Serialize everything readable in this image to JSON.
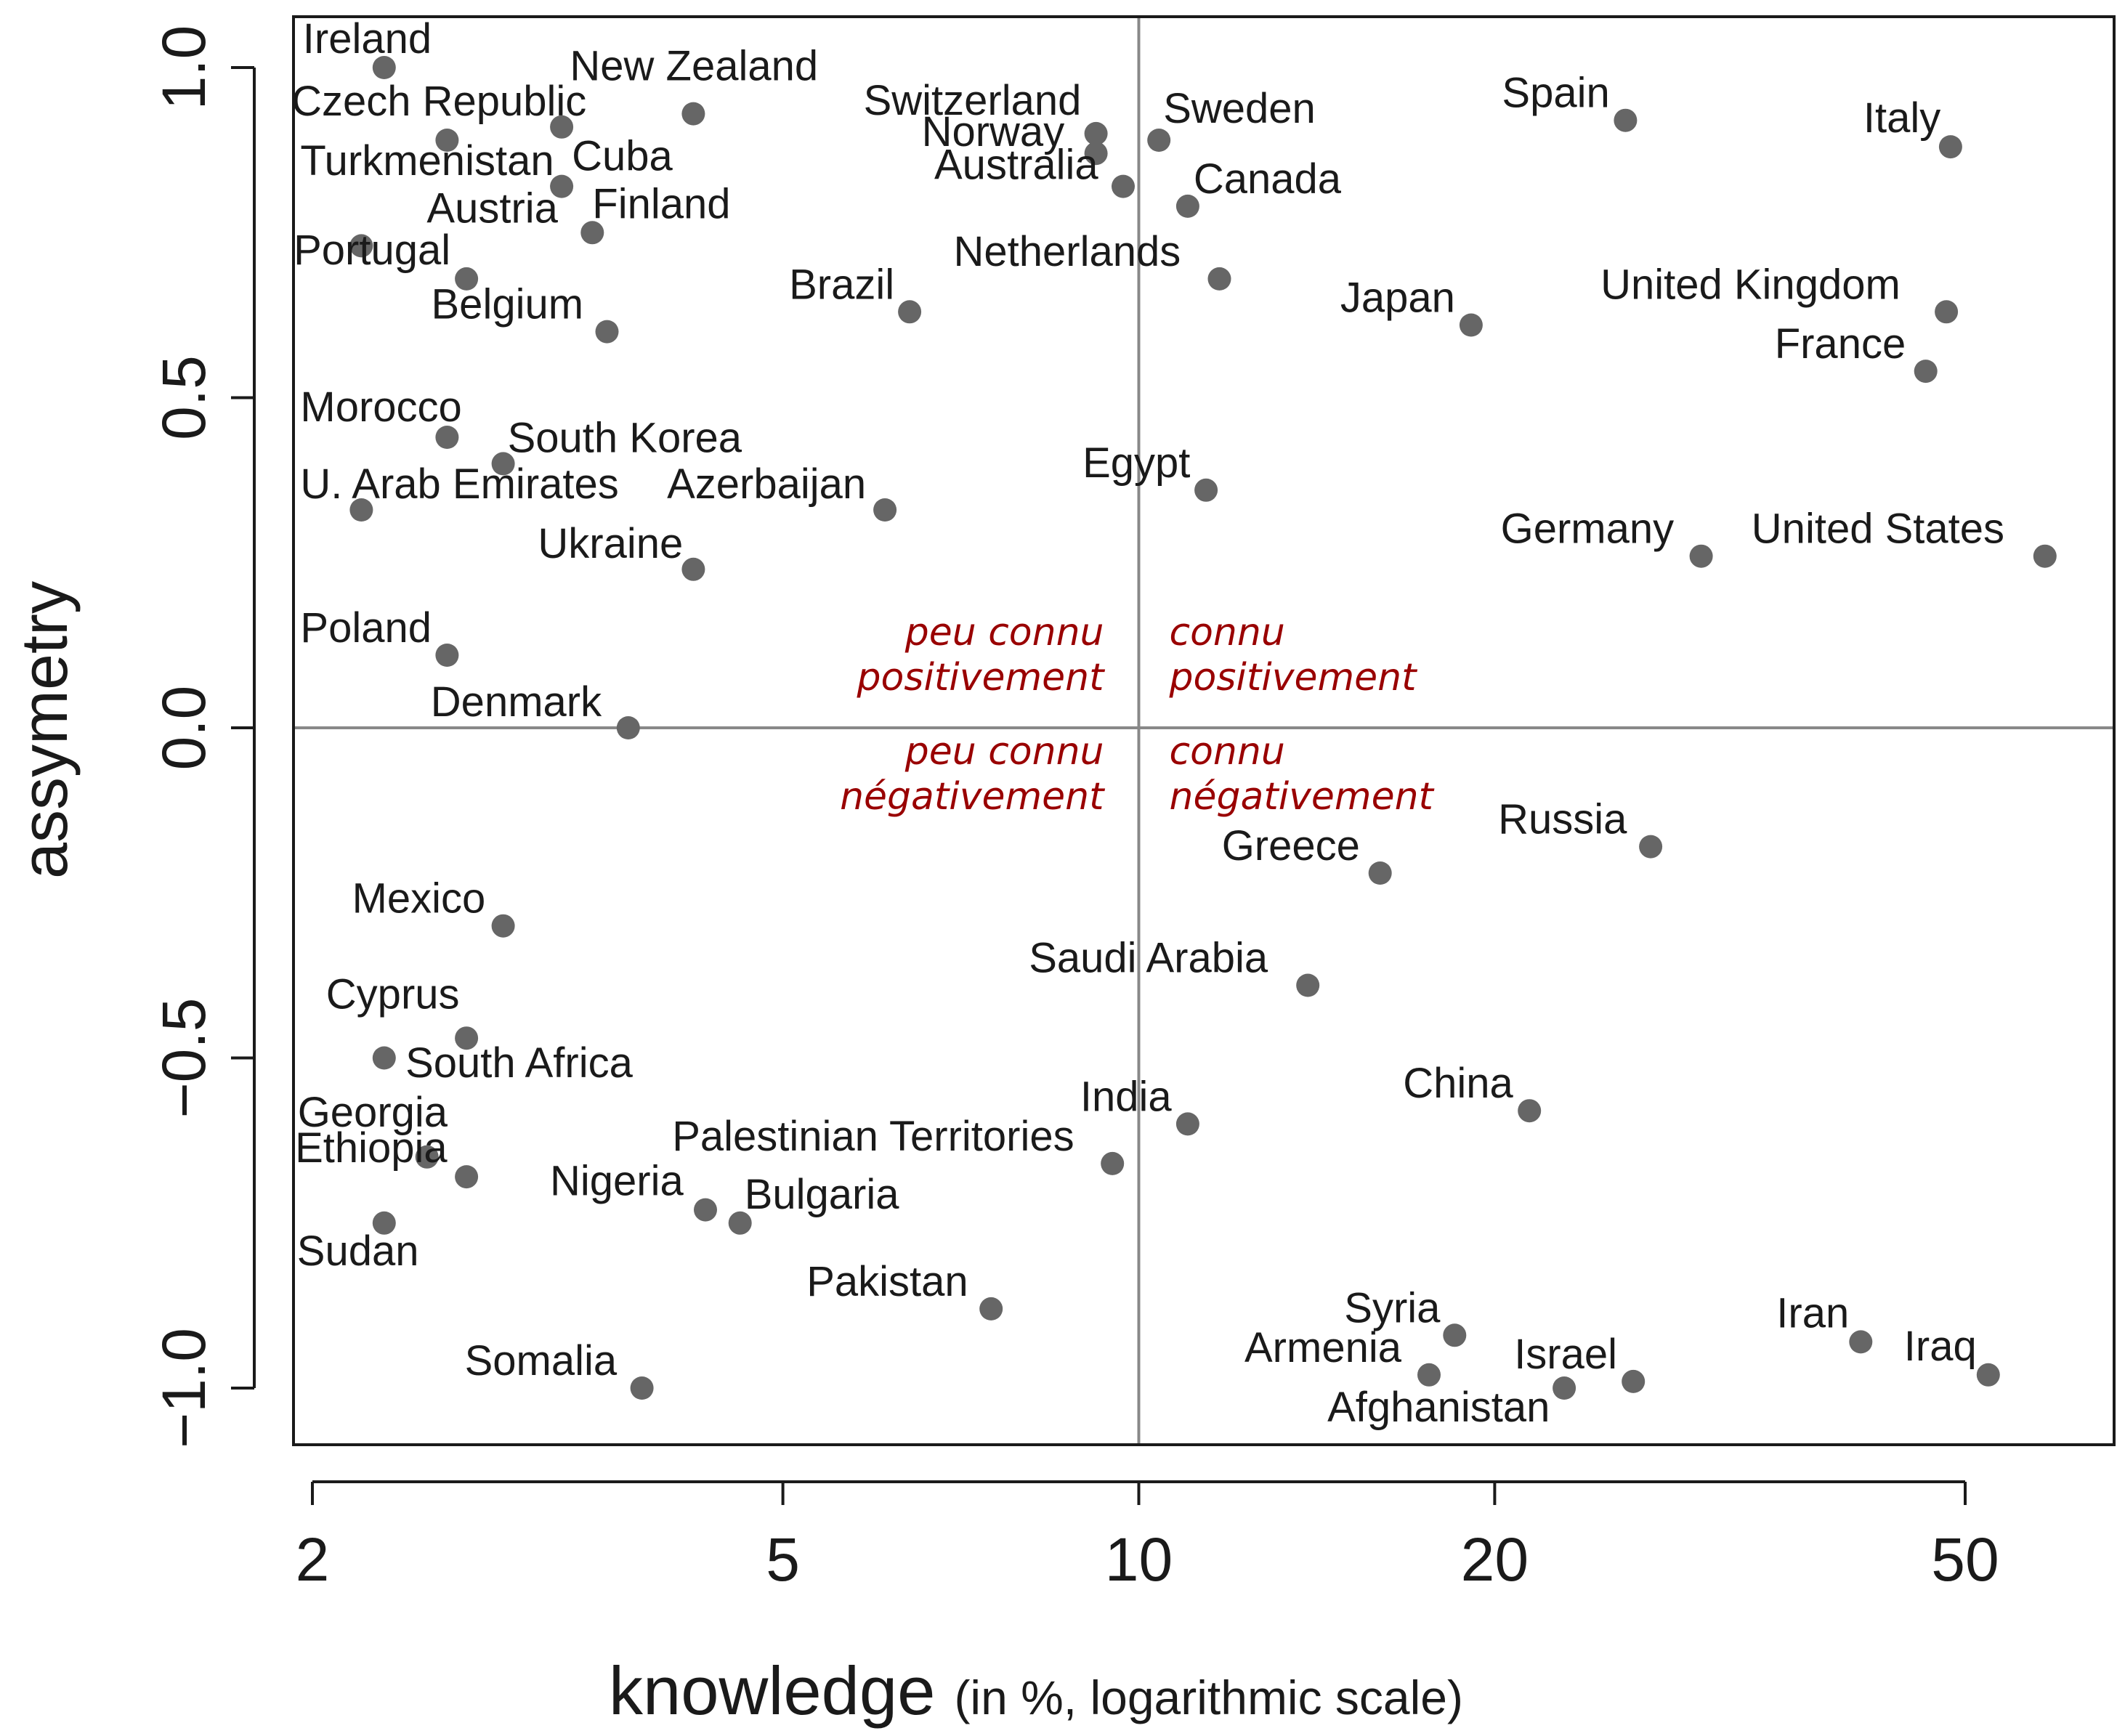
{
  "chart_data": {
    "type": "scatter",
    "xlabel": "knowledge",
    "xlabel_note": "(in %, logarithmic scale)",
    "ylabel": "assymetry",
    "x_scale": "log",
    "xlim": [
      1.95,
      62
    ],
    "ylim": [
      -1.08,
      1.08
    ],
    "x_ticks": [
      2,
      5,
      10,
      20,
      50
    ],
    "x_tick_labels": [
      "2",
      "5",
      "10",
      "20",
      "50"
    ],
    "y_ticks": [
      -1.0,
      -0.5,
      0.0,
      0.5,
      1.0
    ],
    "y_tick_labels": [
      "−1.0",
      "−0.5",
      "0.0",
      "0.5",
      "1.0"
    ],
    "reference_lines": {
      "x": 10,
      "y": 0
    },
    "point_color": "#666666",
    "quadrant_label_color": "#990000",
    "quadrant_labels": [
      {
        "lines": [
          "peu connu",
          "positivement"
        ],
        "position": "top-left"
      },
      {
        "lines": [
          "connu",
          "positivement"
        ],
        "position": "top-right"
      },
      {
        "lines": [
          "peu connu",
          "négativement"
        ],
        "position": "bottom-left"
      },
      {
        "lines": [
          "connu",
          "négativement"
        ],
        "position": "bottom-right"
      }
    ],
    "points": [
      {
        "label": "Ireland",
        "x": 2.3,
        "y": 1.0
      },
      {
        "label": "New Zealand",
        "x": 4.2,
        "y": 0.93
      },
      {
        "label": "Czech Republic",
        "x": 3.25,
        "y": 0.91
      },
      {
        "label": "Turkmenistan",
        "x": 2.6,
        "y": 0.89
      },
      {
        "label": "Cuba",
        "x": 3.25,
        "y": 0.82
      },
      {
        "label": "Finland",
        "x": 3.45,
        "y": 0.75
      },
      {
        "label": "Austria",
        "x": 2.2,
        "y": 0.73
      },
      {
        "label": "Portugal",
        "x": 2.7,
        "y": 0.68
      },
      {
        "label": "Belgium",
        "x": 3.55,
        "y": 0.6
      },
      {
        "label": "Morocco",
        "x": 2.6,
        "y": 0.44
      },
      {
        "label": "South Korea",
        "x": 2.9,
        "y": 0.4
      },
      {
        "label": "U. Arab Emirates",
        "x": 2.2,
        "y": 0.33
      },
      {
        "label": "Azerbaijan",
        "x": 6.1,
        "y": 0.33
      },
      {
        "label": "Ukraine",
        "x": 4.2,
        "y": 0.24
      },
      {
        "label": "Poland",
        "x": 2.6,
        "y": 0.11
      },
      {
        "label": "Denmark",
        "x": 3.7,
        "y": 0.0
      },
      {
        "label": "Switzerland",
        "x": 9.2,
        "y": 0.9
      },
      {
        "label": "Norway",
        "x": 9.2,
        "y": 0.87
      },
      {
        "label": "Australia",
        "x": 9.7,
        "y": 0.82
      },
      {
        "label": "Brazil",
        "x": 6.4,
        "y": 0.63
      },
      {
        "label": "Sweden",
        "x": 10.4,
        "y": 0.89
      },
      {
        "label": "Canada",
        "x": 11.0,
        "y": 0.79
      },
      {
        "label": "Netherlands",
        "x": 11.7,
        "y": 0.68
      },
      {
        "label": "Egypt",
        "x": 11.4,
        "y": 0.36
      },
      {
        "label": "Spain",
        "x": 25.8,
        "y": 0.92
      },
      {
        "label": "Italy",
        "x": 48.6,
        "y": 0.88
      },
      {
        "label": "Japan",
        "x": 19.1,
        "y": 0.61
      },
      {
        "label": "United Kingdom",
        "x": 48.2,
        "y": 0.63
      },
      {
        "label": "France",
        "x": 46.3,
        "y": 0.54
      },
      {
        "label": "Germany",
        "x": 29.9,
        "y": 0.26
      },
      {
        "label": "United States",
        "x": 58.4,
        "y": 0.26
      },
      {
        "label": "Russia",
        "x": 27.1,
        "y": -0.18
      },
      {
        "label": "Greece",
        "x": 16.0,
        "y": -0.22
      },
      {
        "label": "Saudi Arabia",
        "x": 13.9,
        "y": -0.39
      },
      {
        "label": "China",
        "x": 21.4,
        "y": -0.58
      },
      {
        "label": "India",
        "x": 11.0,
        "y": -0.6
      },
      {
        "label": "Palestinian Territories",
        "x": 9.5,
        "y": -0.66
      },
      {
        "label": "Mexico",
        "x": 2.9,
        "y": -0.3
      },
      {
        "label": "Cyprus",
        "x": 2.3,
        "y": -0.5
      },
      {
        "label": "South Africa",
        "x": 2.7,
        "y": -0.47
      },
      {
        "label": "Georgia",
        "x": 2.5,
        "y": -0.65
      },
      {
        "label": "Ethiopia",
        "x": 2.7,
        "y": -0.68
      },
      {
        "label": "Sudan",
        "x": 2.3,
        "y": -0.75
      },
      {
        "label": "Nigeria",
        "x": 4.3,
        "y": -0.73
      },
      {
        "label": "Bulgaria",
        "x": 4.6,
        "y": -0.75
      },
      {
        "label": "Pakistan",
        "x": 7.5,
        "y": -0.88
      },
      {
        "label": "Somalia",
        "x": 3.8,
        "y": -1.0
      },
      {
        "label": "Syria",
        "x": 18.5,
        "y": -0.92
      },
      {
        "label": "Armenia",
        "x": 17.6,
        "y": -0.98
      },
      {
        "label": "Afghanistan",
        "x": 22.9,
        "y": -1.0
      },
      {
        "label": "Israel",
        "x": 26.2,
        "y": -0.99
      },
      {
        "label": "Iran",
        "x": 40.8,
        "y": -0.93
      },
      {
        "label": "Iraq",
        "x": 52.3,
        "y": -0.98
      }
    ]
  }
}
